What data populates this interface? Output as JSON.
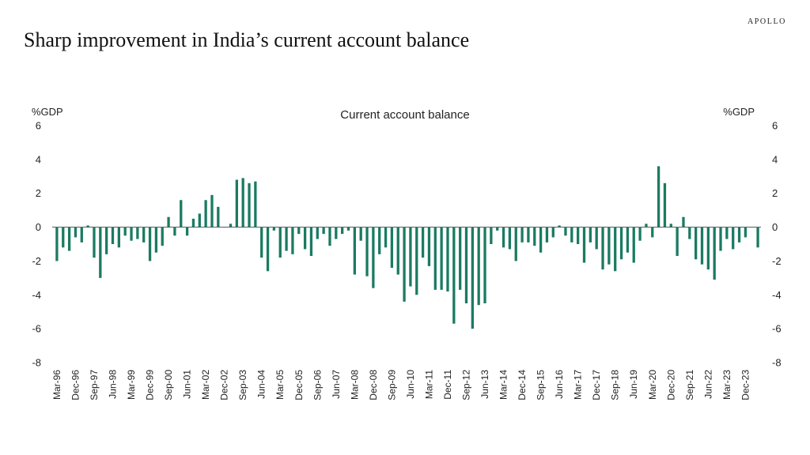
{
  "brand": "APOLLO",
  "page_title": "Sharp improvement in India’s current account balance",
  "chart_data": {
    "type": "bar",
    "title": "Current account balance",
    "ylabel_left": "%GDP",
    "ylabel_right": "%GDP",
    "ylim": [
      -8,
      6
    ],
    "yticks": [
      6,
      4,
      2,
      0,
      -2,
      -4,
      -6,
      -8
    ],
    "color": "#1b7a62",
    "x_tick_labels": [
      "Mar-96",
      "Dec-96",
      "Sep-97",
      "Jun-98",
      "Mar-99",
      "Dec-99",
      "Sep-00",
      "Jun-01",
      "Mar-02",
      "Dec-02",
      "Sep-03",
      "Jun-04",
      "Mar-05",
      "Dec-05",
      "Sep-06",
      "Jun-07",
      "Mar-08",
      "Dec-08",
      "Sep-09",
      "Jun-10",
      "Mar-11",
      "Dec-11",
      "Sep-12",
      "Jun-13",
      "Mar-14",
      "Dec-14",
      "Sep-15",
      "Jun-16",
      "Mar-17",
      "Dec-17",
      "Sep-18",
      "Jun-19",
      "Mar-20",
      "Dec-20",
      "Sep-21",
      "Jun-22",
      "Mar-23",
      "Dec-23"
    ],
    "quarters": [
      "Mar-96",
      "Jun-96",
      "Sep-96",
      "Dec-96",
      "Mar-97",
      "Jun-97",
      "Sep-97",
      "Dec-97",
      "Mar-98",
      "Jun-98",
      "Sep-98",
      "Dec-98",
      "Mar-99",
      "Jun-99",
      "Sep-99",
      "Dec-99",
      "Mar-00",
      "Jun-00",
      "Sep-00",
      "Dec-00",
      "Mar-01",
      "Jun-01",
      "Sep-01",
      "Dec-01",
      "Mar-02",
      "Jun-02",
      "Sep-02",
      "Dec-02",
      "Mar-03",
      "Jun-03",
      "Sep-03",
      "Dec-03",
      "Mar-04",
      "Jun-04",
      "Sep-04",
      "Dec-04",
      "Mar-05",
      "Jun-05",
      "Sep-05",
      "Dec-05",
      "Mar-06",
      "Jun-06",
      "Sep-06",
      "Dec-06",
      "Mar-07",
      "Jun-07",
      "Sep-07",
      "Dec-07",
      "Mar-08",
      "Jun-08",
      "Sep-08",
      "Dec-08",
      "Mar-09",
      "Jun-09",
      "Sep-09",
      "Dec-09",
      "Mar-10",
      "Jun-10",
      "Sep-10",
      "Dec-10",
      "Mar-11",
      "Jun-11",
      "Sep-11",
      "Dec-11",
      "Mar-12",
      "Jun-12",
      "Sep-12",
      "Dec-12",
      "Mar-13",
      "Jun-13",
      "Sep-13",
      "Dec-13",
      "Mar-14",
      "Jun-14",
      "Sep-14",
      "Dec-14",
      "Mar-15",
      "Jun-15",
      "Sep-15",
      "Dec-15",
      "Mar-16",
      "Jun-16",
      "Sep-16",
      "Dec-16",
      "Mar-17",
      "Jun-17",
      "Sep-17",
      "Dec-17",
      "Mar-18",
      "Jun-18",
      "Sep-18",
      "Dec-18",
      "Mar-19",
      "Jun-19",
      "Sep-19",
      "Dec-19",
      "Mar-20",
      "Jun-20",
      "Sep-20",
      "Dec-20",
      "Mar-21",
      "Jun-21",
      "Sep-21",
      "Dec-21",
      "Mar-22",
      "Jun-22",
      "Sep-22",
      "Dec-22",
      "Mar-23",
      "Jun-23",
      "Sep-23",
      "Dec-23",
      "Mar-24",
      "Jun-24"
    ],
    "values": [
      -2.0,
      -1.2,
      -1.4,
      -0.6,
      -0.9,
      0.1,
      -1.8,
      -3.0,
      -1.6,
      -1.0,
      -1.2,
      -0.5,
      -0.8,
      -0.7,
      -0.9,
      -2.0,
      -1.5,
      -1.1,
      0.6,
      -0.5,
      1.6,
      -0.5,
      0.5,
      0.8,
      1.6,
      1.9,
      1.2,
      0.0,
      0.2,
      2.8,
      2.9,
      2.6,
      2.7,
      -1.8,
      -2.6,
      -0.2,
      -1.8,
      -1.4,
      -1.6,
      -0.4,
      -1.3,
      -1.7,
      -0.7,
      -0.4,
      -1.1,
      -0.7,
      -0.4,
      -0.2,
      -2.8,
      -0.8,
      -2.9,
      -3.6,
      -1.6,
      -1.2,
      -2.4,
      -2.8,
      -4.4,
      -3.5,
      -4.0,
      -1.8,
      -2.3,
      -3.7,
      -3.7,
      -3.8,
      -5.7,
      -3.7,
      -4.5,
      -6.0,
      -4.6,
      -4.5,
      -1.0,
      -0.2,
      -1.2,
      -1.3,
      -2.0,
      -0.9,
      -0.9,
      -1.1,
      -1.5,
      -0.9,
      -0.6,
      0.1,
      -0.5,
      -0.9,
      -1.0,
      -2.1,
      -0.9,
      -1.3,
      -2.5,
      -2.2,
      -2.6,
      -1.9,
      -1.5,
      -2.1,
      -0.8,
      0.2,
      -0.6,
      3.6,
      2.6,
      0.2,
      -1.7,
      0.6,
      -0.7,
      -1.9,
      -2.2,
      -2.5,
      -3.1,
      -1.4,
      -0.7,
      -1.3,
      -0.9,
      -0.6,
      0.0,
      -1.2
    ]
  }
}
